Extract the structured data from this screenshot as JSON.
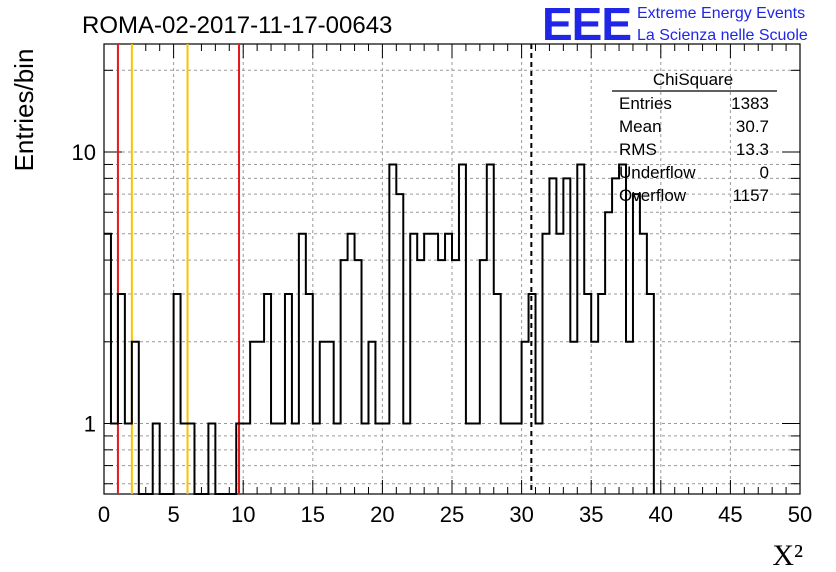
{
  "chart_data": {
    "type": "bar",
    "title": "ROMA-02-2017-11-17-00643",
    "xlabel": "X²",
    "ylabel": "Entries/bin",
    "xlim": [
      0,
      50
    ],
    "ylim": [
      0.55,
      25
    ],
    "y_scale": "log",
    "grid": true,
    "x_ticks": [
      "0",
      "5",
      "10",
      "15",
      "20",
      "25",
      "30",
      "35",
      "40",
      "45",
      "50"
    ],
    "y_ticks": [
      "1",
      "10"
    ],
    "bin_width": 0.5,
    "values": [
      5,
      1,
      3,
      1,
      2,
      0,
      0,
      1,
      0,
      0,
      3,
      1,
      1,
      0,
      0,
      1,
      0,
      0,
      0,
      1,
      1,
      2,
      2,
      3,
      1,
      1,
      3,
      1,
      5,
      3,
      1,
      2,
      2,
      1,
      4,
      5,
      4,
      1,
      2,
      1,
      1,
      9,
      7,
      1,
      5,
      4,
      5,
      5,
      4,
      5,
      4,
      9,
      1,
      1,
      4,
      9,
      3,
      1,
      1,
      1,
      2,
      3,
      1,
      5,
      8,
      5,
      8,
      2,
      9,
      3,
      2,
      3,
      6,
      8,
      9,
      2,
      7,
      5,
      3
    ],
    "vertical_lines": [
      {
        "x": 1.0,
        "color": "#e8151a",
        "style": "solid"
      },
      {
        "x": 2.0,
        "color": "#f7c400",
        "style": "solid"
      },
      {
        "x": 6.0,
        "color": "#f7c400",
        "style": "solid"
      },
      {
        "x": 9.7,
        "color": "#e8151a",
        "style": "solid"
      },
      {
        "x": 30.7,
        "color": "#000000",
        "style": "dashed"
      }
    ],
    "stats_box": {
      "title": "ChiSquare",
      "rows": [
        {
          "label": "Entries",
          "value": "1383"
        },
        {
          "label": "Mean",
          "value": "30.7"
        },
        {
          "label": "RMS",
          "value": "13.3"
        },
        {
          "label": "Underflow",
          "value": "0"
        },
        {
          "label": "Overflow",
          "value": "1157"
        }
      ]
    }
  },
  "logo": {
    "mark": "EEE",
    "line1": "Extreme Energy Events",
    "line2": "La Scienza nelle Scuole",
    "color": "#1f26e6"
  }
}
